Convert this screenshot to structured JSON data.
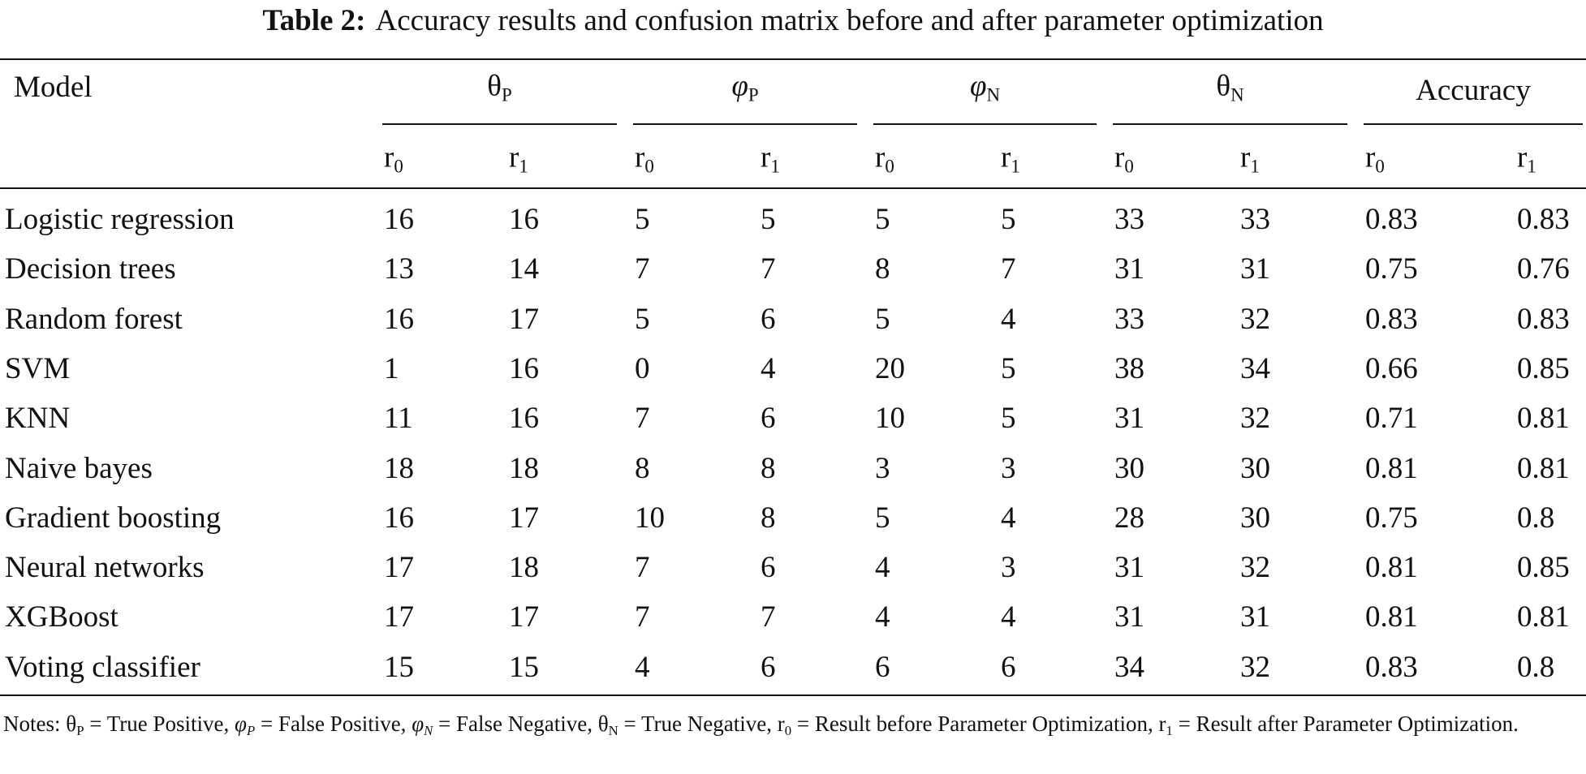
{
  "title": {
    "label": "Table 2:",
    "text": "Accuracy results and confusion matrix before and after parameter optimization"
  },
  "table": {
    "model_header": "Model",
    "groups": [
      {
        "symbol": "θ",
        "sub": "P"
      },
      {
        "symbol": "φ",
        "sub": "P"
      },
      {
        "symbol": "φ",
        "sub": "N"
      },
      {
        "symbol": "θ",
        "sub": "N"
      },
      {
        "text": "Accuracy"
      }
    ],
    "subheaders": [
      {
        "symbol": "r",
        "sub": "0"
      },
      {
        "symbol": "r",
        "sub": "1"
      },
      {
        "symbol": "r",
        "sub": "0"
      },
      {
        "symbol": "r",
        "sub": "1"
      },
      {
        "symbol": "r",
        "sub": "0"
      },
      {
        "symbol": "r",
        "sub": "1"
      },
      {
        "symbol": "r",
        "sub": "0"
      },
      {
        "symbol": "r",
        "sub": "1"
      },
      {
        "symbol": "r",
        "sub": "0"
      },
      {
        "symbol": "r",
        "sub": "1"
      }
    ],
    "rows": [
      [
        "Logistic regression",
        16,
        16,
        5,
        5,
        5,
        5,
        33,
        33,
        0.83,
        0.83
      ],
      [
        "Decision trees",
        13,
        14,
        7,
        7,
        8,
        7,
        31,
        31,
        0.75,
        0.76
      ],
      [
        "Random forest",
        16,
        17,
        5,
        6,
        5,
        4,
        33,
        32,
        0.83,
        0.83
      ],
      [
        "SVM",
        1,
        16,
        0,
        4,
        20,
        5,
        38,
        34,
        0.66,
        0.85
      ],
      [
        "KNN",
        11,
        16,
        7,
        6,
        10,
        5,
        31,
        32,
        0.71,
        0.81
      ],
      [
        "Naive bayes",
        18,
        18,
        8,
        8,
        3,
        3,
        30,
        30,
        0.81,
        0.81
      ],
      [
        "Gradient boosting",
        16,
        17,
        10,
        8,
        5,
        4,
        28,
        30,
        0.75,
        0.8
      ],
      [
        "Neural networks",
        17,
        18,
        7,
        6,
        4,
        3,
        31,
        32,
        0.81,
        0.85
      ],
      [
        "XGBoost",
        17,
        17,
        7,
        7,
        4,
        4,
        31,
        31,
        0.81,
        0.81
      ],
      [
        "Voting classifier",
        15,
        15,
        4,
        6,
        6,
        6,
        34,
        32,
        0.83,
        0.8
      ]
    ]
  },
  "notes": {
    "label": "Notes:",
    "items": [
      {
        "symbol": "θ",
        "sub": "P",
        "text": "= True Positive,"
      },
      {
        "symbol": "φ",
        "sub": "P",
        "text": "= False Positive,"
      },
      {
        "symbol": "φ",
        "sub": "N",
        "text": "= False Negative,"
      },
      {
        "symbol": "θ",
        "sub": "N",
        "text": "= True Negative,"
      },
      {
        "symbol": "r",
        "sub": "0",
        "text": "= Result before Parameter Optimization,"
      },
      {
        "symbol": "r",
        "sub": "1",
        "text": "= Result after Parameter Optimization."
      }
    ]
  }
}
